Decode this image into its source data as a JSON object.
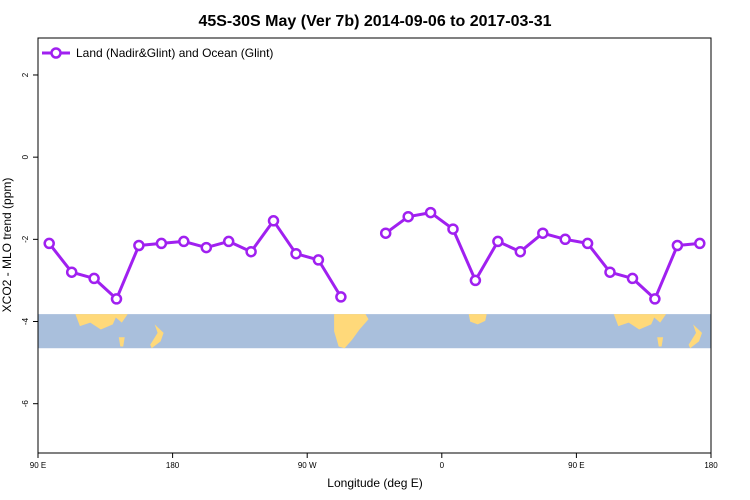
{
  "chart_data": {
    "type": "line",
    "title": "45S-30S May (Ver 7b)   2014-09-06 to 2017-03-31",
    "xlabel": "Longitude (deg E)",
    "ylabel": "XCO2 - MLO trend (ppm)",
    "xlim": [
      90,
      540
    ],
    "ylim": [
      -7.2,
      2.9
    ],
    "x_ticks": [
      {
        "value": 90,
        "label": "90 E"
      },
      {
        "value": 180,
        "label": "180"
      },
      {
        "value": 270,
        "label": "90 W"
      },
      {
        "value": 360,
        "label": "0"
      },
      {
        "value": 450,
        "label": "90 E"
      },
      {
        "value": 540,
        "label": "180"
      }
    ],
    "y_ticks": [
      {
        "value": 2,
        "label": "2"
      },
      {
        "value": 0,
        "label": "0"
      },
      {
        "value": -2,
        "label": "-2"
      },
      {
        "value": -4,
        "label": "-4"
      },
      {
        "value": -6,
        "label": "-6"
      }
    ],
    "grid": false,
    "legend_position": "top-left",
    "series": [
      {
        "name": "Land (Nadir&Glint) and Ocean (Glint)",
        "color": "#a020f0",
        "segments": [
          [
            [
              97.5,
              -2.1
            ],
            [
              112.5,
              -2.8
            ],
            [
              127.5,
              -2.95
            ],
            [
              142.5,
              -3.45
            ],
            [
              157.5,
              -2.15
            ],
            [
              172.5,
              -2.1
            ],
            [
              187.5,
              -2.05
            ],
            [
              202.5,
              -2.2
            ],
            [
              217.5,
              -2.05
            ],
            [
              232.5,
              -2.3
            ],
            [
              247.5,
              -1.55
            ],
            [
              262.5,
              -2.35
            ],
            [
              277.5,
              -2.5
            ],
            [
              292.5,
              -3.4
            ]
          ],
          [
            [
              322.5,
              -1.85
            ],
            [
              337.5,
              -1.45
            ],
            [
              352.5,
              -1.35
            ],
            [
              367.5,
              -1.75
            ],
            [
              382.5,
              -3.0
            ],
            [
              397.5,
              -2.05
            ],
            [
              412.5,
              -2.3
            ],
            [
              427.5,
              -1.85
            ],
            [
              442.5,
              -2.0
            ],
            [
              457.5,
              -2.1
            ],
            [
              472.5,
              -2.8
            ],
            [
              487.5,
              -2.95
            ],
            [
              502.5,
              -3.45
            ],
            [
              517.5,
              -2.15
            ],
            [
              532.5,
              -2.1
            ]
          ]
        ]
      }
    ],
    "map_strip": {
      "ocean_color": "#a9bfdc",
      "land_color": "#ffd97a",
      "ymin": -4.65,
      "ymax": -3.82
    }
  }
}
